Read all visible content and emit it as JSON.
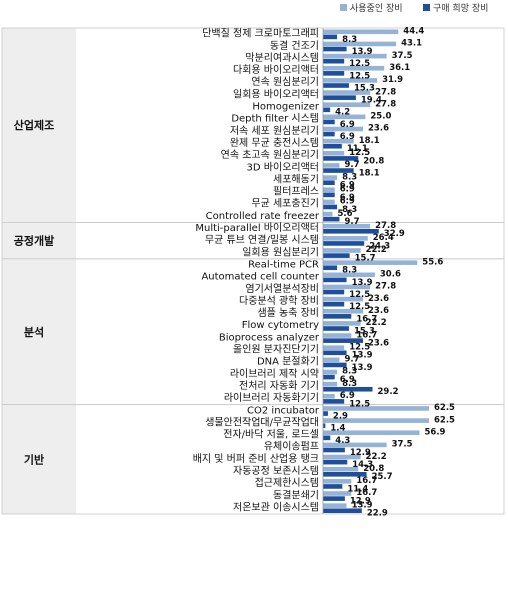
{
  "chart_data": {
    "type": "bar",
    "orientation": "horizontal",
    "legend": {
      "placement": "top-right",
      "items": [
        {
          "name": "사용중인 장비",
          "color": "#95B3D7"
        },
        {
          "name": "구매 희망 장비",
          "color": "#1F4E9A"
        }
      ]
    },
    "xlim": [
      0,
      62.5
    ],
    "groups": [
      {
        "name": "산업제조",
        "items": [
          {
            "label": "단백질 정제 크로마토그래피",
            "used": 44.4,
            "wanted": 8.3
          },
          {
            "label": "동결 건조기",
            "used": 43.1,
            "wanted": 13.9
          },
          {
            "label": "막분리여과시스템",
            "used": 37.5,
            "wanted": 12.5
          },
          {
            "label": "다회용 바이오리액터",
            "used": 36.1,
            "wanted": 12.5
          },
          {
            "label": "연속 원심분리기",
            "used": 31.9,
            "wanted": 15.3
          },
          {
            "label": "일회용 바이오리액터",
            "used": 27.8,
            "wanted": 19.4
          },
          {
            "label": "Homogenizer",
            "used": 27.8,
            "wanted": 4.2
          },
          {
            "label": "Depth filter 시스템",
            "used": 25.0,
            "wanted": 6.9
          },
          {
            "label": "저속 세포 원심분리기",
            "used": 23.6,
            "wanted": 6.9
          },
          {
            "label": "완제 무균 충전시스템",
            "used": 18.1,
            "wanted": 11.1
          },
          {
            "label": "연속 초고속 원심분리기",
            "used": 12.5,
            "wanted": 20.8
          },
          {
            "label": "3D 바이오리액터",
            "used": 9.7,
            "wanted": 18.1
          },
          {
            "label": "세포해동기",
            "used": 8.3,
            "wanted": 6.9
          },
          {
            "label": "필터프레스",
            "used": 6.9,
            "wanted": 6.9
          },
          {
            "label": "무균 세포충진기",
            "used": 6.9,
            "wanted": 8.3
          },
          {
            "label": "Controlled rate freezer",
            "used": 5.6,
            "wanted": 9.7
          }
        ]
      },
      {
        "name": "공정개발",
        "items": [
          {
            "label": "Multi-parallel 바이오리액터",
            "used": 27.8,
            "wanted": 32.9
          },
          {
            "label": "무균 튜브 연결/밀봉 시스템",
            "used": 26.4,
            "wanted": 24.3
          },
          {
            "label": "일회용 원심분리기",
            "used": 22.2,
            "wanted": 15.7
          }
        ]
      },
      {
        "name": "분석",
        "items": [
          {
            "label": "Real-time PCR",
            "used": 55.6,
            "wanted": 8.3
          },
          {
            "label": "Automated cell counter",
            "used": 30.6,
            "wanted": 13.9
          },
          {
            "label": "염기서열분석장비",
            "used": 27.8,
            "wanted": 12.5
          },
          {
            "label": "다중분석 광학 장비",
            "used": 23.6,
            "wanted": 12.5
          },
          {
            "label": "샘플 농축 장비",
            "used": 23.6,
            "wanted": 16.7
          },
          {
            "label": "Flow cytometry",
            "used": 22.2,
            "wanted": 15.3
          },
          {
            "label": "Bioprocess analyzer",
            "used": 16.7,
            "wanted": 23.6
          },
          {
            "label": "올인원 분자진단기기",
            "used": 12.5,
            "wanted": 13.9
          },
          {
            "label": "DNA 분절화기",
            "used": 9.7,
            "wanted": 13.9
          },
          {
            "label": "라이브러리 제작 시약",
            "used": 8.3,
            "wanted": 6.9
          },
          {
            "label": "전처리 자동화 기기",
            "used": 8.3,
            "wanted": 29.2
          },
          {
            "label": "라이브러리 자동화기기",
            "used": 6.9,
            "wanted": 12.5
          }
        ]
      },
      {
        "name": "기반",
        "items": [
          {
            "label": "CO2 incubator",
            "used": 62.5,
            "wanted": 2.9
          },
          {
            "label": "생물안전작업대/무균작업대",
            "used": 62.5,
            "wanted": 1.4
          },
          {
            "label": "전자/바닥 저울, 로드셀",
            "used": 56.9,
            "wanted": 4.3
          },
          {
            "label": "유체이송펌프",
            "used": 37.5,
            "wanted": 12.9
          },
          {
            "label": "배지 및 버퍼 준비 산업용 탱크",
            "used": 22.2,
            "wanted": 14.3
          },
          {
            "label": "자동공정 보존시스템",
            "used": 20.8,
            "wanted": 25.7
          },
          {
            "label": "접근제한시스템",
            "used": 16.7,
            "wanted": 11.4
          },
          {
            "label": "동결분쇄기",
            "used": 16.7,
            "wanted": 12.9
          },
          {
            "label": "저온보관 이송시스템",
            "used": 13.9,
            "wanted": 22.9
          }
        ]
      }
    ]
  }
}
